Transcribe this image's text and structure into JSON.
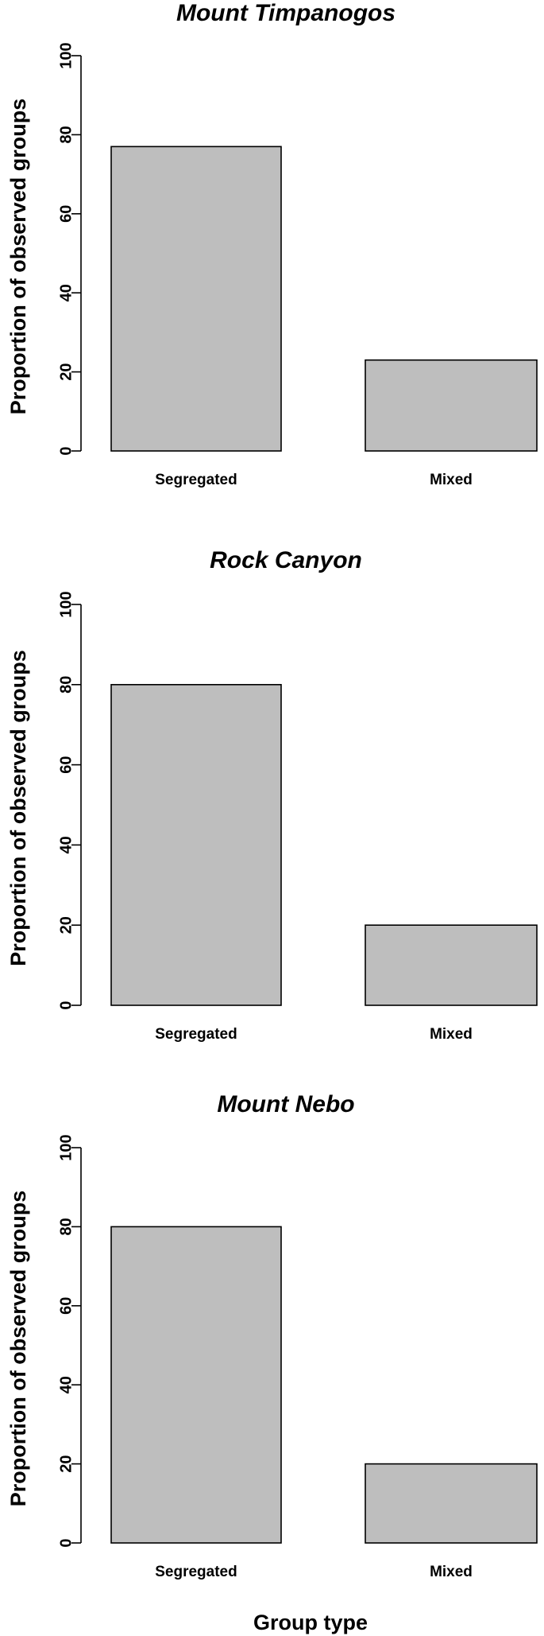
{
  "chart_data": [
    {
      "type": "bar",
      "title": "Mount Timpanogos",
      "ylabel": "Proportion of observed groups",
      "xlabel": "",
      "categories": [
        "Segregated",
        "Mixed"
      ],
      "values": [
        77,
        23
      ],
      "ylim": [
        0,
        100
      ],
      "yticks": [
        0,
        20,
        40,
        60,
        80,
        100
      ],
      "bar_color": "#bebebe"
    },
    {
      "type": "bar",
      "title": "Rock Canyon",
      "ylabel": "Proportion of observed groups",
      "xlabel": "",
      "categories": [
        "Segregated",
        "Mixed"
      ],
      "values": [
        80,
        20
      ],
      "ylim": [
        0,
        100
      ],
      "yticks": [
        0,
        20,
        40,
        60,
        80,
        100
      ],
      "bar_color": "#bebebe"
    },
    {
      "type": "bar",
      "title": "Mount Nebo",
      "ylabel": "Proportion of observed groups",
      "xlabel": "Group type",
      "categories": [
        "Segregated",
        "Mixed"
      ],
      "values": [
        80,
        20
      ],
      "ylim": [
        0,
        100
      ],
      "yticks": [
        0,
        20,
        40,
        60,
        80,
        100
      ],
      "bar_color": "#bebebe"
    }
  ]
}
